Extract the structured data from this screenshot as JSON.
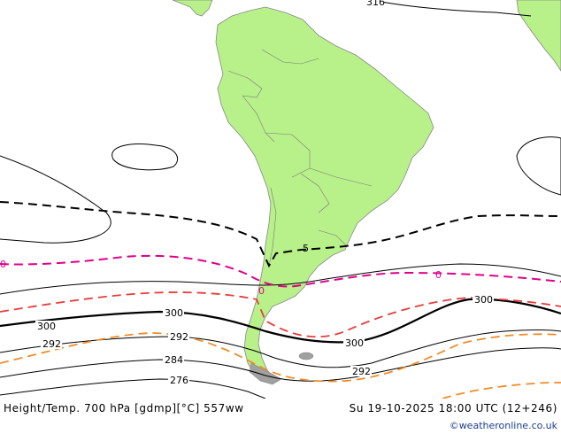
{
  "footer": {
    "title": "Height/Temp. 700 hPa [gdmp][°C] 557ww",
    "datetime": "Su 19-10-2025 18:00 UTC (12+246)",
    "credit": "©weatheronline.co.uk"
  },
  "contour_labels": {
    "height_316": "316",
    "height_300_west": "300",
    "height_300_mid": "300",
    "height_300_low": "300",
    "height_300_east": "300",
    "height_292_west": "292",
    "height_292_mid": "292",
    "height_292_east": "292",
    "height_284": "284",
    "height_276": "276",
    "temp_5": "5",
    "temp_0_west": "0",
    "temp_0_east": "0",
    "temp_0_andes": "0"
  },
  "colors": {
    "land": "#b8f08a",
    "ocean": "#ffffff",
    "height_contour": "#000000",
    "temp_zero": "#e0008c",
    "temp_negative": "#e83c3c",
    "temp_cold": "#f08c28",
    "temp_positive": "#000000",
    "credit": "#1e3c8c"
  }
}
